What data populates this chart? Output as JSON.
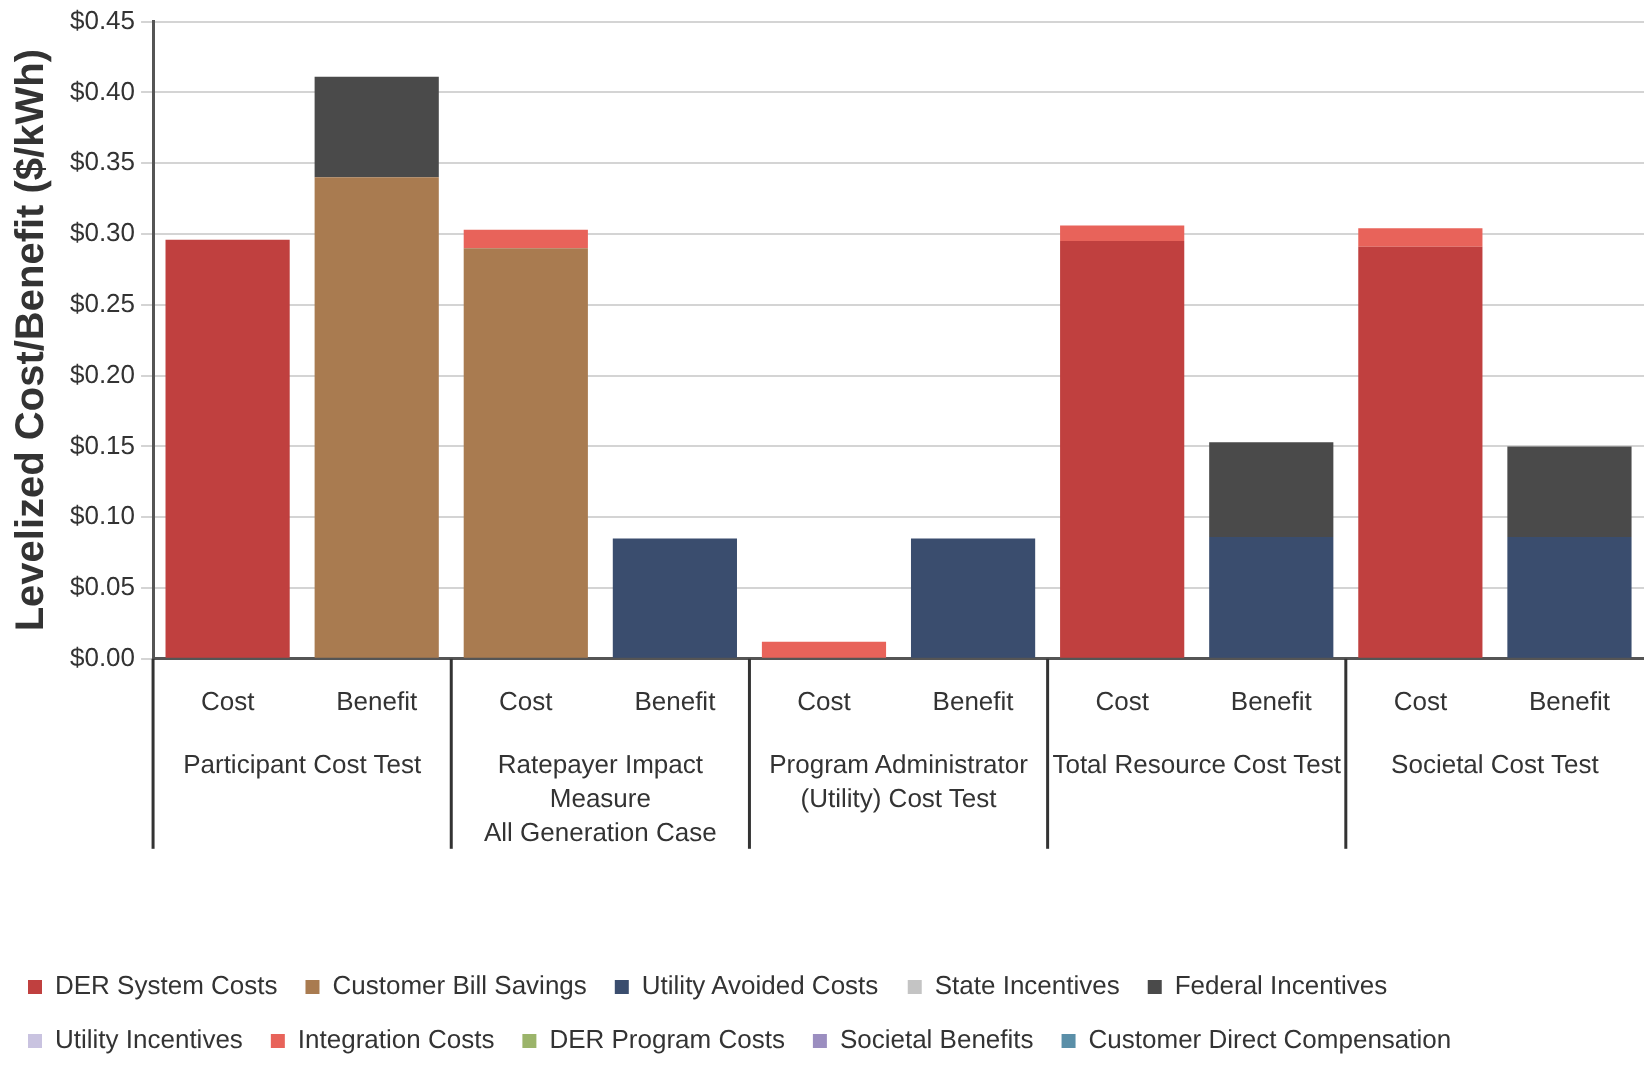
{
  "chart_data": {
    "type": "bar",
    "stacked": true,
    "ylabel": "Levelized Cost/Benefit ($/kWh)",
    "categories": [
      "Cost",
      "Benefit",
      "Cost",
      "Benefit",
      "Cost",
      "Benefit",
      "Cost",
      "Benefit",
      "Cost",
      "Benefit"
    ],
    "annotations": [
      "Participant Cost Test",
      "Ratepayer Impact Measure\nAll Generation Case",
      "Program Administrator (Utility) Cost Test",
      "Total Resource Cost Test",
      "Societal Cost Test"
    ],
    "series": [
      {
        "name": "DER System Costs",
        "color": "#c0403f",
        "values": [
          0.296,
          null,
          null,
          null,
          null,
          null,
          0.295,
          null,
          0.291,
          null
        ]
      },
      {
        "name": "Customer Bill Savings",
        "color": "#a97b50",
        "values": [
          null,
          0.34,
          0.29,
          null,
          null,
          null,
          null,
          null,
          null,
          null
        ]
      },
      {
        "name": "Utility Avoided Costs",
        "color": "#3a4d6e",
        "values": [
          null,
          null,
          null,
          0.085,
          null,
          0.085,
          null,
          0.086,
          null,
          0.086
        ]
      },
      {
        "name": "State Incentives",
        "color": "#c4c4c4",
        "values": [
          null,
          null,
          null,
          null,
          null,
          null,
          null,
          null,
          null,
          null
        ]
      },
      {
        "name": "Federal Incentives",
        "color": "#4a4a4a",
        "values": [
          null,
          0.071,
          null,
          null,
          null,
          null,
          null,
          0.067,
          null,
          0.064
        ]
      },
      {
        "name": "Utility Incentives",
        "color": "#c9c3e0",
        "values": [
          null,
          null,
          null,
          null,
          null,
          null,
          null,
          null,
          null,
          null
        ]
      },
      {
        "name": "Integration Costs",
        "color": "#e8635a",
        "values": [
          null,
          null,
          0.013,
          null,
          0.012,
          null,
          0.011,
          null,
          0.013,
          null
        ]
      },
      {
        "name": "DER Program Costs",
        "color": "#9bb46a",
        "values": [
          null,
          null,
          null,
          null,
          null,
          null,
          null,
          null,
          null,
          null
        ]
      },
      {
        "name": "Societal Benefits",
        "color": "#9b8ec0",
        "values": [
          null,
          null,
          null,
          null,
          null,
          null,
          null,
          null,
          null,
          null
        ]
      },
      {
        "name": "Customer Direct Compensation",
        "color": "#5a8fa8",
        "values": [
          null,
          null,
          null,
          null,
          null,
          null,
          null,
          null,
          null,
          null
        ]
      }
    ],
    "ylim": [
      0,
      0.45
    ],
    "yticks": [
      {
        "value": 0,
        "label": "$0.00"
      },
      {
        "value": 0.05,
        "label": "$0.05"
      },
      {
        "value": 0.1,
        "label": "$0.10"
      },
      {
        "value": 0.15,
        "label": "$0.15"
      },
      {
        "value": 0.2,
        "label": "$0.20"
      },
      {
        "value": 0.25,
        "label": "$0.25"
      },
      {
        "value": 0.3,
        "label": "$0.30"
      },
      {
        "value": 0.35,
        "label": "$0.35"
      },
      {
        "value": 0.4,
        "label": "$0.40"
      },
      {
        "value": 0.45,
        "label": "$0.45"
      }
    ],
    "grid": "y",
    "legend": "bottom"
  }
}
